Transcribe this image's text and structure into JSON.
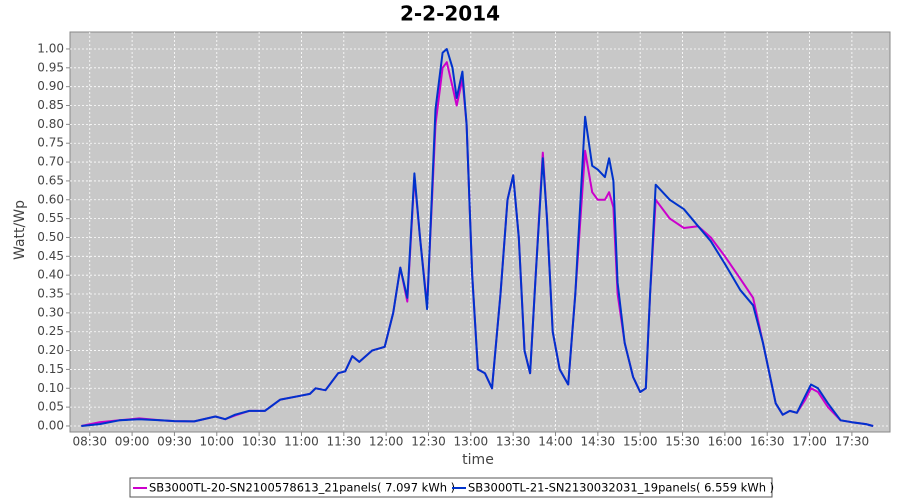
{
  "chart_data": {
    "type": "line",
    "title": "2-2-2014",
    "x_label": "time",
    "y_label": "Watt/Wp",
    "x": [
      "08:24",
      "08:37",
      "08:51",
      "09:05",
      "09:20",
      "09:30",
      "09:44",
      "09:59",
      "10:06",
      "10:13",
      "10:23",
      "10:34",
      "10:45",
      "10:59",
      "11:06",
      "11:10",
      "11:17",
      "11:26",
      "11:31",
      "11:36",
      "11:41",
      "11:50",
      "11:59",
      "12:05",
      "12:10",
      "12:15",
      "12:20",
      "12:24",
      "12:29",
      "12:35",
      "12:40",
      "12:43",
      "12:47",
      "12:50",
      "12:54",
      "12:57",
      "13:01",
      "13:05",
      "13:10",
      "13:15",
      "13:21",
      "13:26",
      "13:30",
      "13:34",
      "13:38",
      "13:42",
      "13:46",
      "13:51",
      "13:54",
      "13:58",
      "14:03",
      "14:09",
      "14:14",
      "14:21",
      "14:26",
      "14:30",
      "14:35",
      "14:38",
      "14:41",
      "14:44",
      "14:49",
      "14:55",
      "15:00",
      "15:04",
      "15:07",
      "15:11",
      "15:21",
      "15:31",
      "15:41",
      "15:50",
      "16:00",
      "16:11",
      "16:20",
      "16:27",
      "16:36",
      "16:41",
      "16:46",
      "16:51",
      "16:57",
      "17:01",
      "17:06",
      "17:13",
      "17:22",
      "17:30",
      "17:40",
      "17:45"
    ],
    "series": [
      {
        "name": "SB3000TL-20-SN2100578613_21panels( 7.097 kWh )",
        "color": "#cc00cc",
        "values": [
          0,
          0.01,
          0.015,
          0.02,
          0.015,
          0.013,
          0.012,
          0.025,
          0.018,
          0.028,
          0.04,
          0.04,
          0.07,
          0.08,
          0.085,
          0.1,
          0.095,
          0.14,
          0.145,
          0.185,
          0.17,
          0.2,
          0.21,
          0.3,
          0.42,
          0.33,
          0.66,
          0.5,
          0.32,
          0.8,
          0.95,
          0.965,
          0.9,
          0.85,
          0.92,
          0.8,
          0.4,
          0.15,
          0.14,
          0.1,
          0.35,
          0.6,
          0.665,
          0.5,
          0.2,
          0.14,
          0.4,
          0.725,
          0.55,
          0.25,
          0.15,
          0.11,
          0.35,
          0.73,
          0.62,
          0.6,
          0.6,
          0.62,
          0.58,
          0.35,
          0.22,
          0.13,
          0.09,
          0.1,
          0.35,
          0.6,
          0.55,
          0.525,
          0.53,
          0.5,
          0.45,
          0.39,
          0.34,
          0.22,
          0.06,
          0.03,
          0.04,
          0.035,
          0.07,
          0.1,
          0.09,
          0.05,
          0.015,
          0.01,
          0.005,
          0
        ]
      },
      {
        "name": "SB3000TL-21-SN2130032031_19panels( 6.559 kWh )",
        "color": "#0033cc",
        "values": [
          0,
          0.005,
          0.015,
          0.018,
          0.015,
          0.013,
          0.012,
          0.025,
          0.018,
          0.03,
          0.04,
          0.04,
          0.07,
          0.08,
          0.085,
          0.1,
          0.095,
          0.14,
          0.145,
          0.185,
          0.17,
          0.2,
          0.21,
          0.3,
          0.42,
          0.34,
          0.67,
          0.5,
          0.31,
          0.84,
          0.99,
          1.0,
          0.95,
          0.87,
          0.94,
          0.8,
          0.4,
          0.15,
          0.14,
          0.1,
          0.35,
          0.6,
          0.665,
          0.5,
          0.2,
          0.14,
          0.4,
          0.71,
          0.55,
          0.25,
          0.15,
          0.11,
          0.35,
          0.82,
          0.69,
          0.68,
          0.66,
          0.71,
          0.65,
          0.38,
          0.22,
          0.13,
          0.09,
          0.1,
          0.35,
          0.64,
          0.6,
          0.575,
          0.53,
          0.49,
          0.43,
          0.36,
          0.32,
          0.22,
          0.06,
          0.03,
          0.04,
          0.035,
          0.08,
          0.11,
          0.1,
          0.06,
          0.015,
          0.01,
          0.005,
          0
        ]
      }
    ],
    "xlim": [
      "08:16",
      "17:57"
    ],
    "xticks": [
      "08:30",
      "09:00",
      "09:30",
      "10:00",
      "10:30",
      "11:00",
      "11:30",
      "12:00",
      "12:30",
      "13:00",
      "13:30",
      "14:00",
      "14:30",
      "15:00",
      "15:30",
      "16:00",
      "16:30",
      "17:00",
      "17:30"
    ],
    "ylim": [
      -0.016,
      1.045
    ],
    "yticks": [
      {
        "value": 0,
        "label": "0.00"
      },
      {
        "value": 0.05,
        "label": "0.05"
      },
      {
        "value": 0.1,
        "label": "0.10"
      },
      {
        "value": 0.15,
        "label": "0.15"
      },
      {
        "value": 0.2,
        "label": "0.20"
      },
      {
        "value": 0.25,
        "label": "0.25"
      },
      {
        "value": 0.3,
        "label": "0.30"
      },
      {
        "value": 0.35,
        "label": "0.35"
      },
      {
        "value": 0.4,
        "label": "0.40"
      },
      {
        "value": 0.45,
        "label": "0.45"
      },
      {
        "value": 0.5,
        "label": "0.50"
      },
      {
        "value": 0.55,
        "label": "0.55"
      },
      {
        "value": 0.6,
        "label": "0.60"
      },
      {
        "value": 0.65,
        "label": "0.65"
      },
      {
        "value": 0.7,
        "label": "0.70"
      },
      {
        "value": 0.75,
        "label": "0.75"
      },
      {
        "value": 0.8,
        "label": "0.80"
      },
      {
        "value": 0.85,
        "label": "0.85"
      },
      {
        "value": 0.9,
        "label": "0.90"
      },
      {
        "value": 0.95,
        "label": "0.95"
      },
      {
        "value": 1,
        "label": "1.00"
      }
    ],
    "grid": true,
    "plot_background": "#c8c8c8",
    "legend": "bottom"
  }
}
